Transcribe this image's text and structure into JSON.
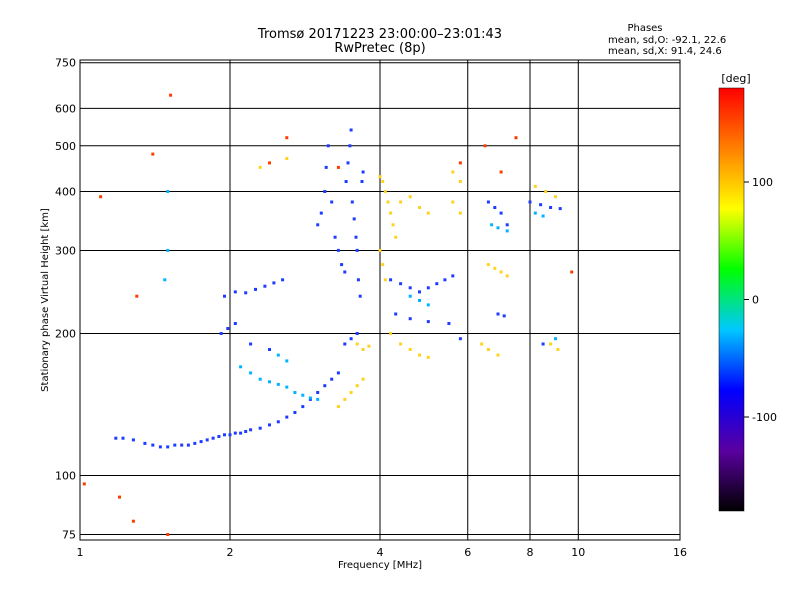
{
  "chart_data": {
    "type": "scatter",
    "title": "Tromsø 20171223 23:00:00–23:01:43",
    "subtitle": "RwPretec (8p)",
    "xlabel": "Frequency [MHz]",
    "ylabel": "Stationary phase Virtual Height [km]",
    "x_scale": "log",
    "y_scale": "log",
    "xlim": [
      1,
      16
    ],
    "ylim": [
      73,
      760
    ],
    "x_ticks": [
      1,
      2,
      4,
      6,
      8,
      10,
      16
    ],
    "y_ticks": [
      75,
      100,
      200,
      300,
      400,
      500,
      600,
      750
    ],
    "grid": true,
    "phases": {
      "title": "Phases",
      "line_o": "mean, sd,O: -92.1, 22.6",
      "line_x": "mean, sd,X: 91.4, 24.6"
    },
    "colorbar": {
      "label": "[deg]",
      "range": [
        -180,
        180
      ],
      "ticks": [
        100,
        0,
        -100
      ],
      "colors": [
        "#000000",
        "#5a00a0",
        "#0000ff",
        "#00c8ff",
        "#00ff00",
        "#ffff00",
        "#ff8000",
        "#ff0000"
      ]
    },
    "series": [
      {
        "phase": "O",
        "color": "#1e3cff",
        "points": [
          [
            1.18,
            120
          ],
          [
            1.22,
            120
          ],
          [
            1.28,
            119
          ],
          [
            1.35,
            117
          ],
          [
            1.4,
            116
          ],
          [
            1.45,
            115
          ],
          [
            1.5,
            115
          ],
          [
            1.55,
            116
          ],
          [
            1.6,
            116
          ],
          [
            1.65,
            116
          ],
          [
            1.7,
            117
          ],
          [
            1.75,
            118
          ],
          [
            1.8,
            119
          ],
          [
            1.85,
            120
          ],
          [
            1.9,
            121
          ],
          [
            1.95,
            122
          ],
          [
            2.0,
            122
          ],
          [
            2.05,
            123
          ],
          [
            2.1,
            123
          ],
          [
            2.15,
            124
          ],
          [
            2.2,
            125
          ],
          [
            2.3,
            126
          ],
          [
            2.4,
            128
          ],
          [
            2.5,
            130
          ],
          [
            2.6,
            133
          ],
          [
            2.7,
            136
          ],
          [
            2.8,
            140
          ],
          [
            2.9,
            145
          ],
          [
            3.0,
            150
          ],
          [
            3.1,
            155
          ],
          [
            3.2,
            160
          ],
          [
            3.3,
            165
          ],
          [
            1.95,
            240
          ],
          [
            2.05,
            245
          ],
          [
            2.15,
            244
          ],
          [
            2.25,
            248
          ],
          [
            2.35,
            252
          ],
          [
            2.45,
            256
          ],
          [
            2.55,
            260
          ],
          [
            1.92,
            200
          ],
          [
            1.98,
            205
          ],
          [
            2.05,
            210
          ],
          [
            2.2,
            190
          ],
          [
            2.4,
            185
          ],
          [
            3.0,
            340
          ],
          [
            3.05,
            360
          ],
          [
            3.1,
            400
          ],
          [
            3.12,
            450
          ],
          [
            3.15,
            500
          ],
          [
            3.2,
            380
          ],
          [
            3.25,
            320
          ],
          [
            3.3,
            300
          ],
          [
            3.35,
            280
          ],
          [
            3.4,
            270
          ],
          [
            3.42,
            420
          ],
          [
            3.45,
            460
          ],
          [
            3.48,
            500
          ],
          [
            3.5,
            540
          ],
          [
            3.52,
            380
          ],
          [
            3.55,
            350
          ],
          [
            3.58,
            320
          ],
          [
            3.6,
            300
          ],
          [
            3.62,
            260
          ],
          [
            3.65,
            240
          ],
          [
            3.68,
            420
          ],
          [
            3.7,
            440
          ],
          [
            3.4,
            190
          ],
          [
            3.5,
            195
          ],
          [
            3.6,
            200
          ],
          [
            4.2,
            260
          ],
          [
            4.4,
            255
          ],
          [
            4.6,
            250
          ],
          [
            4.8,
            245
          ],
          [
            5.0,
            250
          ],
          [
            5.2,
            255
          ],
          [
            5.4,
            260
          ],
          [
            5.6,
            265
          ],
          [
            4.3,
            220
          ],
          [
            4.6,
            215
          ],
          [
            5.0,
            212
          ],
          [
            5.5,
            210
          ],
          [
            5.8,
            195
          ],
          [
            6.6,
            380
          ],
          [
            6.8,
            370
          ],
          [
            7.0,
            360
          ],
          [
            7.2,
            340
          ],
          [
            6.9,
            220
          ],
          [
            7.1,
            218
          ],
          [
            8.0,
            380
          ],
          [
            8.4,
            375
          ],
          [
            8.8,
            370
          ],
          [
            9.2,
            368
          ],
          [
            8.5,
            190
          ]
        ]
      },
      {
        "phase": "X",
        "color": "#ffd21e",
        "points": [
          [
            3.3,
            140
          ],
          [
            3.4,
            145
          ],
          [
            3.5,
            150
          ],
          [
            3.6,
            155
          ],
          [
            3.7,
            160
          ],
          [
            3.6,
            190
          ],
          [
            3.7,
            185
          ],
          [
            3.8,
            188
          ],
          [
            4.0,
            430
          ],
          [
            4.05,
            420
          ],
          [
            4.1,
            400
          ],
          [
            4.15,
            380
          ],
          [
            4.2,
            360
          ],
          [
            4.25,
            340
          ],
          [
            4.3,
            320
          ],
          [
            4.0,
            300
          ],
          [
            4.05,
            280
          ],
          [
            4.1,
            260
          ],
          [
            4.4,
            380
          ],
          [
            4.6,
            390
          ],
          [
            4.8,
            370
          ],
          [
            5.0,
            360
          ],
          [
            4.2,
            200
          ],
          [
            4.4,
            190
          ],
          [
            4.6,
            185
          ],
          [
            4.8,
            180
          ],
          [
            5.0,
            178
          ],
          [
            5.6,
            440
          ],
          [
            5.8,
            420
          ],
          [
            5.6,
            380
          ],
          [
            5.8,
            360
          ],
          [
            6.6,
            280
          ],
          [
            6.8,
            275
          ],
          [
            7.0,
            270
          ],
          [
            7.2,
            265
          ],
          [
            6.4,
            190
          ],
          [
            6.6,
            185
          ],
          [
            6.9,
            180
          ],
          [
            8.2,
            410
          ],
          [
            8.6,
            400
          ],
          [
            9.0,
            390
          ],
          [
            8.8,
            190
          ],
          [
            9.1,
            185
          ],
          [
            2.3,
            450
          ],
          [
            2.6,
            470
          ]
        ]
      },
      {
        "phase": "mixed",
        "color": "#00b4ff",
        "points": [
          [
            2.1,
            170
          ],
          [
            2.2,
            165
          ],
          [
            2.3,
            160
          ],
          [
            2.4,
            158
          ],
          [
            2.5,
            156
          ],
          [
            2.6,
            154
          ],
          [
            2.7,
            150
          ],
          [
            2.8,
            148
          ],
          [
            2.9,
            146
          ],
          [
            3.0,
            145
          ],
          [
            2.5,
            180
          ],
          [
            2.6,
            175
          ],
          [
            4.6,
            240
          ],
          [
            4.8,
            235
          ],
          [
            5.0,
            230
          ],
          [
            6.7,
            340
          ],
          [
            6.9,
            335
          ],
          [
            7.2,
            330
          ],
          [
            8.2,
            360
          ],
          [
            8.5,
            355
          ],
          [
            9.0,
            195
          ],
          [
            1.5,
            400
          ],
          [
            1.5,
            300
          ],
          [
            1.48,
            260
          ]
        ]
      },
      {
        "phase": "outlier",
        "color": "#ff3c00",
        "points": [
          [
            1.02,
            96
          ],
          [
            1.28,
            80
          ],
          [
            1.5,
            75
          ],
          [
            1.52,
            640
          ],
          [
            1.4,
            480
          ],
          [
            1.3,
            240
          ],
          [
            3.3,
            450
          ],
          [
            5.8,
            460
          ],
          [
            6.5,
            500
          ],
          [
            7.5,
            520
          ],
          [
            9.7,
            270
          ],
          [
            7.0,
            440
          ],
          [
            2.4,
            460
          ],
          [
            2.6,
            520
          ],
          [
            1.1,
            390
          ],
          [
            1.2,
            90
          ]
        ]
      }
    ]
  }
}
